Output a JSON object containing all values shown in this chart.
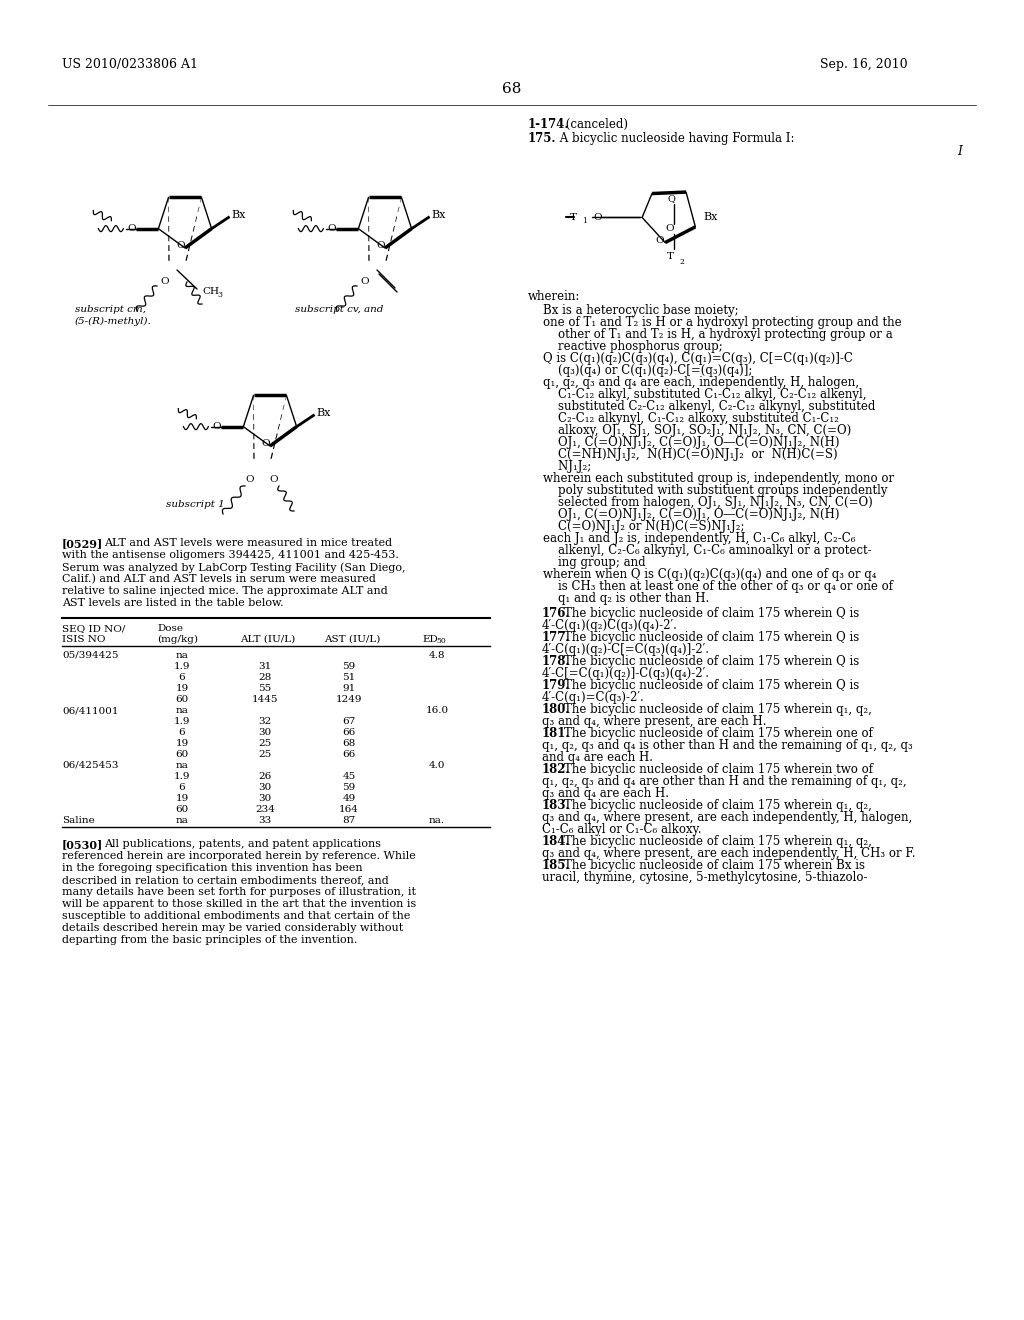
{
  "bg_color": "#ffffff",
  "header_left": "US 2010/0233806 A1",
  "header_right": "Sep. 16, 2010",
  "page_number": "68"
}
